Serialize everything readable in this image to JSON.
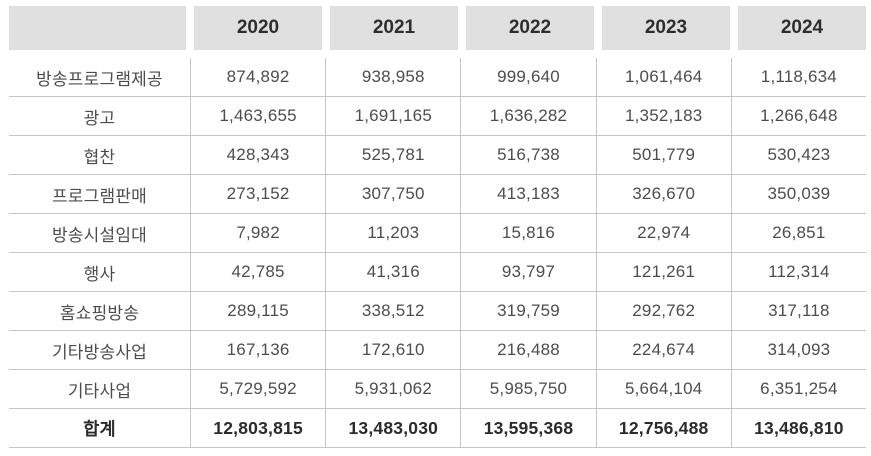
{
  "table": {
    "year_headers": [
      "2020",
      "2021",
      "2022",
      "2023",
      "2024"
    ],
    "rows": [
      {
        "label": "방송프로그램제공",
        "values": [
          "874,892",
          "938,958",
          "999,640",
          "1,061,464",
          "1,118,634"
        ]
      },
      {
        "label": "광고",
        "values": [
          "1,463,655",
          "1,691,165",
          "1,636,282",
          "1,352,183",
          "1,266,648"
        ]
      },
      {
        "label": "협찬",
        "values": [
          "428,343",
          "525,781",
          "516,738",
          "501,779",
          "530,423"
        ]
      },
      {
        "label": "프로그램판매",
        "values": [
          "273,152",
          "307,750",
          "413,183",
          "326,670",
          "350,039"
        ]
      },
      {
        "label": "방송시설임대",
        "values": [
          "7,982",
          "11,203",
          "15,816",
          "22,974",
          "26,851"
        ]
      },
      {
        "label": "행사",
        "values": [
          "42,785",
          "41,316",
          "93,797",
          "121,261",
          "112,314"
        ]
      },
      {
        "label": "홈쇼핑방송",
        "values": [
          "289,115",
          "338,512",
          "319,759",
          "292,762",
          "317,118"
        ]
      },
      {
        "label": "기타방송사업",
        "values": [
          "167,136",
          "172,610",
          "216,488",
          "224,674",
          "314,093"
        ]
      },
      {
        "label": "기타사업",
        "values": [
          "5,729,592",
          "5,931,062",
          "5,985,750",
          "5,664,104",
          "6,351,254"
        ]
      }
    ],
    "total": {
      "label": "합계",
      "values": [
        "12,803,815",
        "13,483,030",
        "13,595,368",
        "12,756,488",
        "13,486,810"
      ]
    }
  },
  "colors": {
    "header_bg": "#e0e0e0",
    "header_text": "#2e2e2e",
    "body_text": "#4d4d4d",
    "total_text": "#2b2b2b",
    "grid_line": "#c6c6c6"
  },
  "chart_data": {
    "type": "table",
    "columns": [
      "",
      "2020",
      "2021",
      "2022",
      "2023",
      "2024"
    ],
    "rows": [
      [
        "방송프로그램제공",
        874892,
        938958,
        999640,
        1061464,
        1118634
      ],
      [
        "광고",
        1463655,
        1691165,
        1636282,
        1352183,
        1266648
      ],
      [
        "협찬",
        428343,
        525781,
        516738,
        501779,
        530423
      ],
      [
        "프로그램판매",
        273152,
        307750,
        413183,
        326670,
        350039
      ],
      [
        "방송시설임대",
        7982,
        11203,
        15816,
        22974,
        26851
      ],
      [
        "행사",
        42785,
        41316,
        93797,
        121261,
        112314
      ],
      [
        "홈쇼핑방송",
        289115,
        338512,
        319759,
        292762,
        317118
      ],
      [
        "기타방송사업",
        167136,
        172610,
        216488,
        224674,
        314093
      ],
      [
        "기타사업",
        5729592,
        5931062,
        5985750,
        5664104,
        6351254
      ],
      [
        "합계",
        12803815,
        13483030,
        13595368,
        12756488,
        13486810
      ]
    ]
  }
}
